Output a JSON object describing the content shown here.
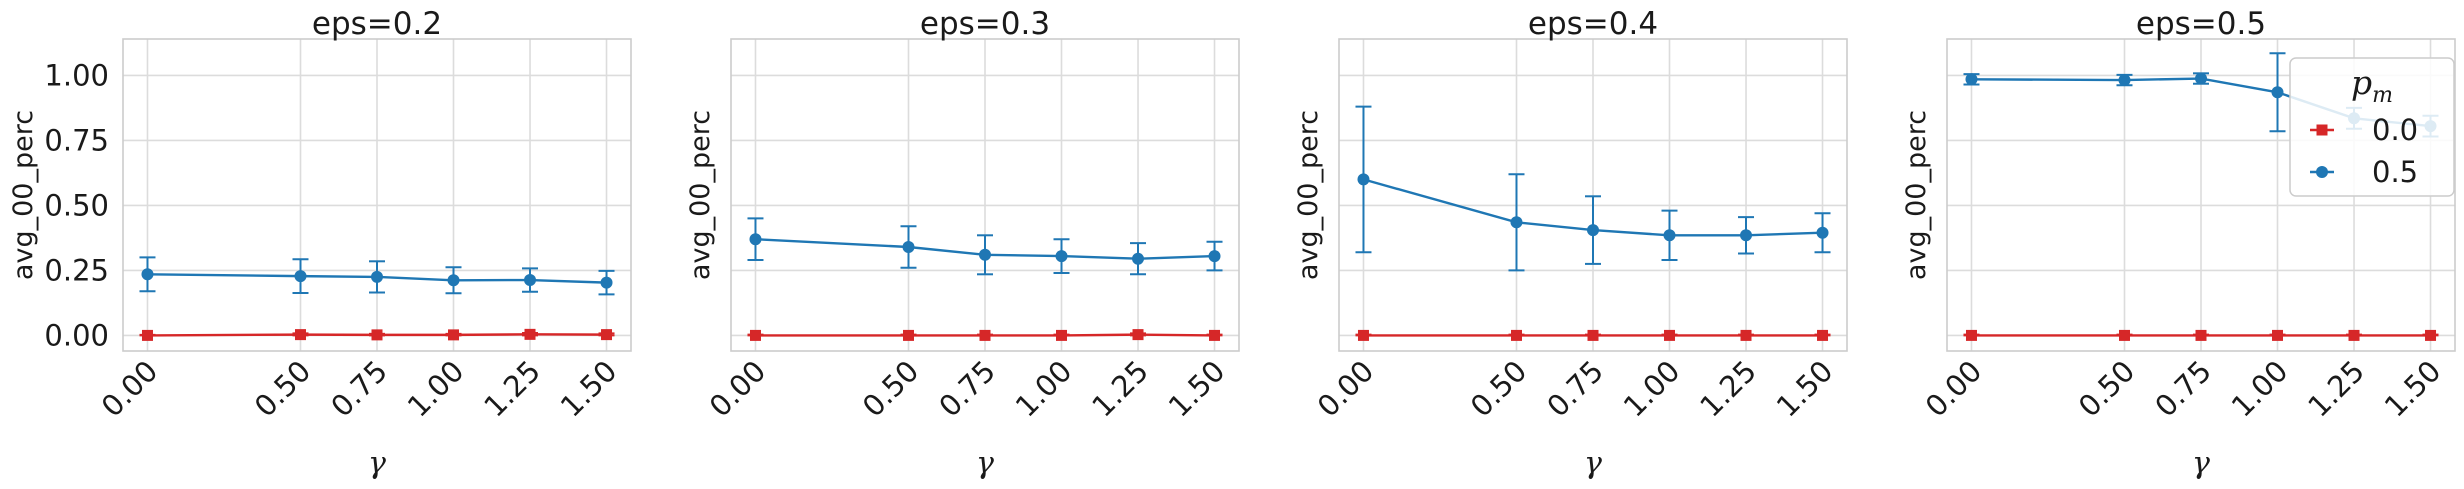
{
  "chart_data": [
    {
      "type": "line",
      "title": "eps=0.2",
      "xlabel": "γ",
      "ylabel": "avg_00_perc",
      "x": [
        0.0,
        0.5,
        0.75,
        1.0,
        1.25,
        1.5
      ],
      "x_tick_labels": [
        "0.00",
        "0.50",
        "0.75",
        "1.00",
        "1.25",
        "1.50"
      ],
      "y_tick_labels": [
        "0.00",
        "0.25",
        "0.50",
        "0.75",
        "1.00"
      ],
      "y_ticks": [
        0,
        0.25,
        0.5,
        0.75,
        1.0
      ],
      "xlim": [
        -0.08,
        1.58
      ],
      "ylim": [
        -0.06,
        1.14
      ],
      "grid": true,
      "series": [
        {
          "name": "0.0",
          "color": "#d62728",
          "marker": "square",
          "values": [
            0.0,
            0.003,
            0.002,
            0.002,
            0.004,
            0.003
          ],
          "err_low": [
            0.0,
            0.003,
            0.002,
            0.002,
            0.004,
            0.003
          ],
          "err_high": [
            0.002,
            0.005,
            0.004,
            0.004,
            0.005,
            0.005
          ]
        },
        {
          "name": "0.5",
          "color": "#1f77b4",
          "marker": "circle",
          "values": [
            0.235,
            0.228,
            0.225,
            0.212,
            0.213,
            0.203
          ],
          "err_low": [
            0.065,
            0.065,
            0.06,
            0.05,
            0.045,
            0.045
          ],
          "err_high": [
            0.065,
            0.065,
            0.06,
            0.05,
            0.045,
            0.045
          ]
        }
      ]
    },
    {
      "type": "line",
      "title": "eps=0.3",
      "xlabel": "γ",
      "ylabel": "avg_00_perc",
      "x": [
        0.0,
        0.5,
        0.75,
        1.0,
        1.25,
        1.5
      ],
      "x_tick_labels": [
        "0.00",
        "0.50",
        "0.75",
        "1.00",
        "1.25",
        "1.50"
      ],
      "y_ticks": [
        0,
        0.25,
        0.5,
        0.75,
        1.0
      ],
      "xlim": [
        -0.08,
        1.58
      ],
      "ylim": [
        -0.06,
        1.14
      ],
      "grid": true,
      "series": [
        {
          "name": "0.0",
          "color": "#d62728",
          "marker": "square",
          "values": [
            0.0,
            0.0,
            0.0,
            0.0,
            0.003,
            0.0
          ],
          "err_low": [
            0.0,
            0.0,
            0.0,
            0.0,
            0.003,
            0.0
          ],
          "err_high": [
            0.003,
            0.003,
            0.003,
            0.003,
            0.005,
            0.003
          ]
        },
        {
          "name": "0.5",
          "color": "#1f77b4",
          "marker": "circle",
          "values": [
            0.37,
            0.34,
            0.31,
            0.305,
            0.295,
            0.305
          ],
          "err_low": [
            0.08,
            0.08,
            0.075,
            0.065,
            0.06,
            0.055
          ],
          "err_high": [
            0.08,
            0.08,
            0.075,
            0.065,
            0.06,
            0.055
          ]
        }
      ]
    },
    {
      "type": "line",
      "title": "eps=0.4",
      "xlabel": "γ",
      "ylabel": "avg_00_perc",
      "x": [
        0.0,
        0.5,
        0.75,
        1.0,
        1.25,
        1.5
      ],
      "x_tick_labels": [
        "0.00",
        "0.50",
        "0.75",
        "1.00",
        "1.25",
        "1.50"
      ],
      "y_ticks": [
        0,
        0.25,
        0.5,
        0.75,
        1.0
      ],
      "xlim": [
        -0.08,
        1.58
      ],
      "ylim": [
        -0.06,
        1.14
      ],
      "grid": true,
      "series": [
        {
          "name": "0.0",
          "color": "#d62728",
          "marker": "square",
          "values": [
            0.0,
            0.0,
            0.0,
            0.0,
            0.0,
            0.0
          ],
          "err_low": [
            0.0,
            0.0,
            0.0,
            0.0,
            0.0,
            0.0
          ],
          "err_high": [
            0.003,
            0.003,
            0.003,
            0.003,
            0.003,
            0.003
          ]
        },
        {
          "name": "0.5",
          "color": "#1f77b4",
          "marker": "circle",
          "values": [
            0.6,
            0.435,
            0.405,
            0.385,
            0.385,
            0.395
          ],
          "err_low": [
            0.28,
            0.185,
            0.13,
            0.095,
            0.07,
            0.075
          ],
          "err_high": [
            0.28,
            0.185,
            0.13,
            0.095,
            0.07,
            0.075
          ]
        }
      ]
    },
    {
      "type": "line",
      "title": "eps=0.5",
      "xlabel": "γ",
      "ylabel": "avg_00_perc",
      "x": [
        0.0,
        0.5,
        0.75,
        1.0,
        1.25,
        1.5
      ],
      "x_tick_labels": [
        "0.00",
        "0.50",
        "0.75",
        "1.00",
        "1.25",
        "1.50"
      ],
      "y_ticks": [
        0,
        0.25,
        0.5,
        0.75,
        1.0
      ],
      "xlim": [
        -0.08,
        1.58
      ],
      "ylim": [
        -0.06,
        1.14
      ],
      "grid": true,
      "series": [
        {
          "name": "0.0",
          "color": "#d62728",
          "marker": "square",
          "values": [
            0.0,
            0.0,
            0.0,
            0.0,
            0.0,
            0.0
          ],
          "err_low": [
            0.0,
            0.0,
            0.0,
            0.0,
            0.0,
            0.0
          ],
          "err_high": [
            0.003,
            0.003,
            0.003,
            0.003,
            0.003,
            0.003
          ]
        },
        {
          "name": "0.5",
          "color": "#1f77b4",
          "marker": "circle",
          "values": [
            0.985,
            0.982,
            0.988,
            0.935,
            0.835,
            0.805
          ],
          "err_low": [
            0.02,
            0.02,
            0.02,
            0.15,
            0.04,
            0.04
          ],
          "err_high": [
            0.02,
            0.02,
            0.02,
            0.15,
            0.04,
            0.04
          ]
        }
      ],
      "legend": {
        "title": "p",
        "title_subscript": "m",
        "placement": "top-right",
        "entries": [
          {
            "label": "0.0",
            "color": "#d62728",
            "marker": "square"
          },
          {
            "label": "0.5",
            "color": "#1f77b4",
            "marker": "circle"
          }
        ]
      }
    }
  ]
}
